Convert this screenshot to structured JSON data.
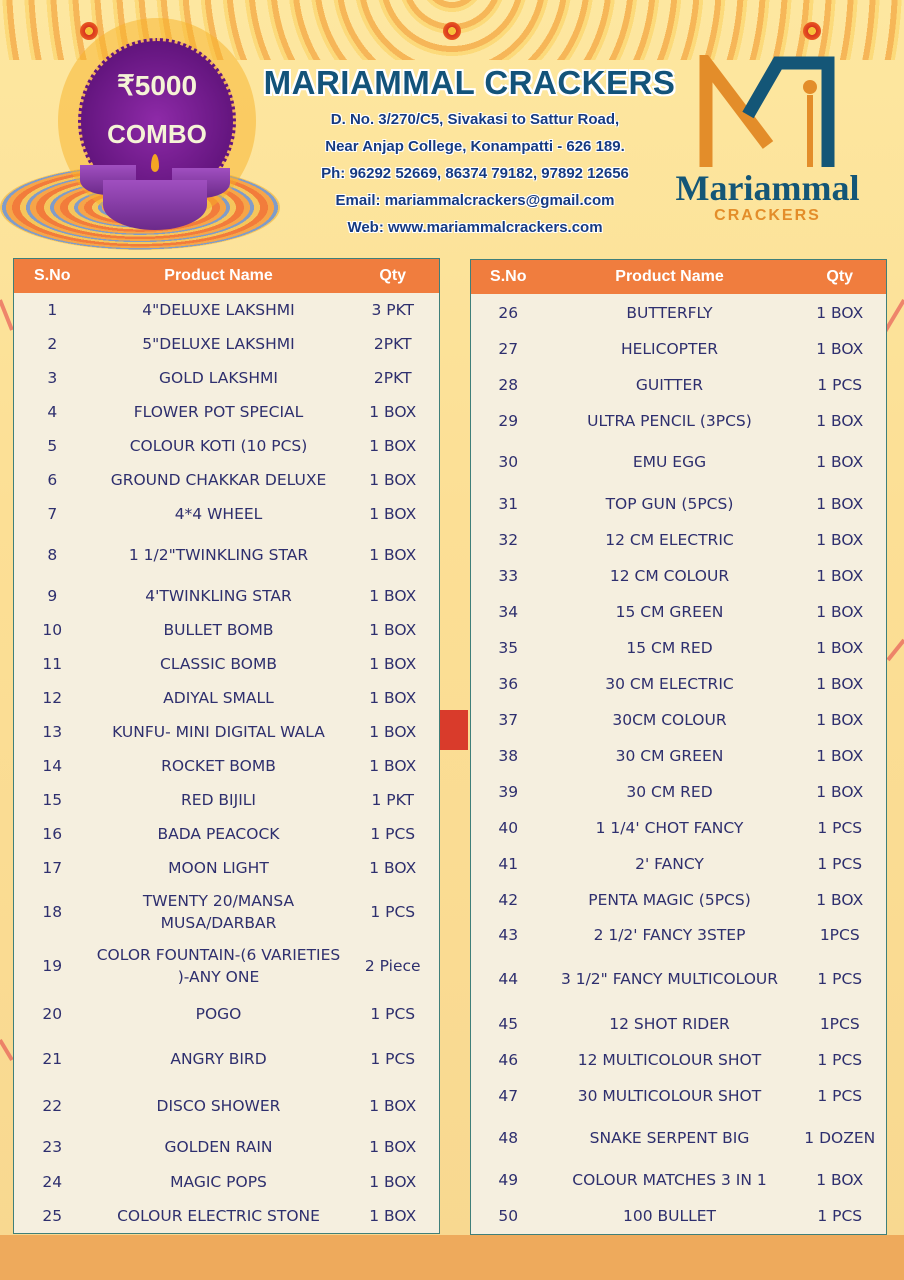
{
  "header": {
    "badge": {
      "price": "₹5000",
      "label": "COMBO"
    },
    "company_name": "MARIAMMAL CRACKERS",
    "address_line1": "D. No. 3/270/C5, Sivakasi to Sattur Road,",
    "address_line2": "Near Anjap College, Konampatti - 626 189.",
    "phone": "Ph: 96292 52669, 86374 79182, 97892 12656",
    "email": "Email: mariammalcrackers@gmail.com",
    "web": "Web: www.mariammalcrackers.com",
    "logo": {
      "name": "Mariammal",
      "sub": "CRACKERS"
    }
  },
  "colors": {
    "header_bg": "#f07d3e",
    "table_bg": "#f5efdf",
    "text": "#2e2f6e",
    "brand_blue": "#13537a",
    "brand_orange": "#e38d2a"
  },
  "table_columns": [
    "S.No",
    "Product Name",
    "Qty"
  ],
  "left_table": [
    [
      "1",
      "4\"DELUXE LAKSHMI",
      "3 PKT"
    ],
    [
      "2",
      "5\"DELUXE LAKSHMI",
      "2PKT"
    ],
    [
      "3",
      "GOLD LAKSHMI",
      "2PKT"
    ],
    [
      "4",
      "FLOWER POT SPECIAL",
      "1 BOX"
    ],
    [
      "5",
      "COLOUR KOTI (10 PCS)",
      "1 BOX"
    ],
    [
      "6",
      "GROUND CHAKKAR DELUXE",
      "1 BOX"
    ],
    [
      "7",
      "4*4 WHEEL",
      "1 BOX"
    ],
    [
      "8",
      "1 1/2\"TWINKLING STAR",
      "1 BOX"
    ],
    [
      "9",
      "4'TWINKLING STAR",
      "1 BOX"
    ],
    [
      "10",
      "BULLET BOMB",
      "1 BOX"
    ],
    [
      "11",
      "CLASSIC BOMB",
      "1 BOX"
    ],
    [
      "12",
      "ADIYAL SMALL",
      "1 BOX"
    ],
    [
      "13",
      "KUNFU- MINI DIGITAL WALA",
      "1 BOX"
    ],
    [
      "14",
      "ROCKET BOMB",
      "1 BOX"
    ],
    [
      "15",
      "RED BIJILI",
      "1 PKT"
    ],
    [
      "16",
      "BADA PEACOCK",
      "1 PCS"
    ],
    [
      "17",
      "MOON LIGHT",
      "1 BOX"
    ],
    [
      "18",
      "TWENTY 20/MANSA MUSA/DARBAR",
      "1 PCS"
    ],
    [
      "19",
      "COLOR FOUNTAIN-(6 VARIETIES )-ANY ONE",
      "2 Piece"
    ],
    [
      "20",
      "POGO",
      "1 PCS"
    ],
    [
      "21",
      "ANGRY BIRD",
      "1 PCS"
    ],
    [
      "22",
      "DISCO SHOWER",
      "1 BOX"
    ],
    [
      "23",
      "GOLDEN RAIN",
      "1 BOX"
    ],
    [
      "24",
      "MAGIC POPS",
      "1 BOX"
    ],
    [
      "25",
      "COLOUR ELECTRIC STONE",
      "1 BOX"
    ]
  ],
  "right_table": [
    [
      "26",
      "BUTTERFLY",
      "1 BOX"
    ],
    [
      "27",
      "HELICOPTER",
      "1 BOX"
    ],
    [
      "28",
      "GUITTER",
      "1 PCS"
    ],
    [
      "29",
      "ULTRA PENCIL (3PCS)",
      "1 BOX"
    ],
    [
      "30",
      "EMU EGG",
      "1 BOX"
    ],
    [
      "31",
      "TOP GUN (5PCS)",
      "1 BOX"
    ],
    [
      "32",
      "12 CM ELECTRIC",
      "1 BOX"
    ],
    [
      "33",
      "12 CM COLOUR",
      "1 BOX"
    ],
    [
      "34",
      "15 CM GREEN",
      "1 BOX"
    ],
    [
      "35",
      "15 CM RED",
      "1 BOX"
    ],
    [
      "36",
      "30 CM ELECTRIC",
      "1 BOX"
    ],
    [
      "37",
      "30CM COLOUR",
      "1 BOX"
    ],
    [
      "38",
      "30 CM GREEN",
      "1 BOX"
    ],
    [
      "39",
      "30 CM RED",
      "1 BOX"
    ],
    [
      "40",
      "1 1/4' CHOT FANCY",
      "1 PCS"
    ],
    [
      "41",
      "2' FANCY",
      "1 PCS"
    ],
    [
      "42",
      "PENTA MAGIC (5PCS)",
      "1 BOX"
    ],
    [
      "43",
      "2 1/2' FANCY 3STEP",
      "1PCS"
    ],
    [
      "44",
      "3 1/2\" FANCY MULTICOLOUR",
      "1 PCS"
    ],
    [
      "45",
      "12 SHOT RIDER",
      "1PCS"
    ],
    [
      "46",
      "12 MULTICOLOUR SHOT",
      "1 PCS"
    ],
    [
      "47",
      "30 MULTICOLOUR SHOT",
      "1 PCS"
    ],
    [
      "48",
      "SNAKE SERPENT BIG",
      "1 DOZEN"
    ],
    [
      "49",
      "COLOUR MATCHES 3 IN 1",
      "1 BOX"
    ],
    [
      "50",
      "100 BULLET",
      "1 PCS"
    ]
  ]
}
